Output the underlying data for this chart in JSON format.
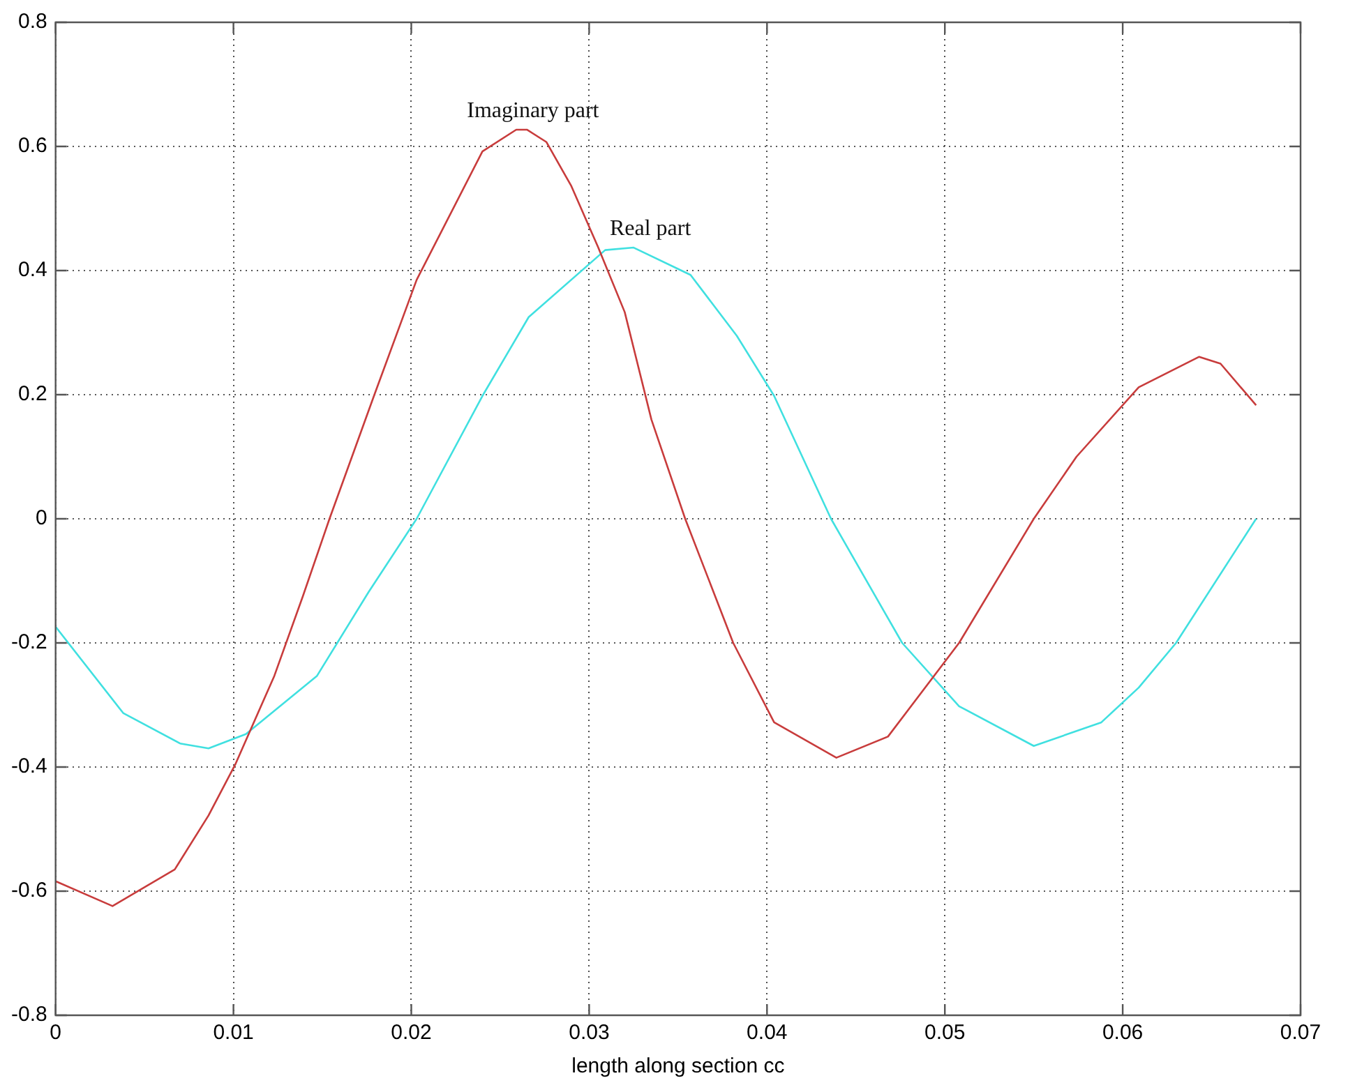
{
  "chart_data": {
    "type": "line",
    "xlabel": "length along section cc",
    "xlim": [
      0,
      0.07
    ],
    "xticks": [
      0,
      0.01,
      0.02,
      0.03,
      0.04,
      0.05,
      0.06,
      0.07
    ],
    "ylim": [
      -0.8,
      0.8
    ],
    "yticks": [
      -0.8,
      -0.6,
      -0.4,
      -0.2,
      0,
      0.2,
      0.4,
      0.6,
      0.8
    ],
    "grid": true,
    "legend": false,
    "marker": "none",
    "line_style": "solid",
    "series": [
      {
        "name": "Imaginary part",
        "color": "#c83c3c",
        "x": [
          0,
          0.0032,
          0.0067,
          0.0086,
          0.0101,
          0.0123,
          0.0139,
          0.0154,
          0.0179,
          0.0203,
          0.024,
          0.0259,
          0.0265,
          0.0276,
          0.029,
          0.0305,
          0.032,
          0.0335,
          0.0354,
          0.0381,
          0.0404,
          0.0439,
          0.0468,
          0.0508,
          0.055,
          0.0574,
          0.0609,
          0.0643,
          0.0655,
          0.0675
        ],
        "values": [
          -0.584,
          -0.624,
          -0.565,
          -0.478,
          -0.396,
          -0.253,
          -0.125,
          0,
          0.198,
          0.385,
          0.592,
          0.627,
          0.627,
          0.607,
          0.536,
          0.438,
          0.333,
          0.16,
          0,
          -0.2,
          -0.328,
          -0.385,
          -0.351,
          -0.2,
          0,
          0.1,
          0.212,
          0.261,
          0.25,
          0.183
        ]
      },
      {
        "name": "Real part",
        "color": "#40e0e0",
        "x": [
          0,
          0.0038,
          0.007,
          0.0086,
          0.0107,
          0.0147,
          0.0176,
          0.0203,
          0.024,
          0.0266,
          0.0309,
          0.0325,
          0.0357,
          0.0383,
          0.0404,
          0.0436,
          0.0476,
          0.0508,
          0.055,
          0.0588,
          0.0609,
          0.063,
          0.0675
        ],
        "values": [
          -0.174,
          -0.313,
          -0.362,
          -0.37,
          -0.347,
          -0.253,
          -0.118,
          0,
          0.198,
          0.325,
          0.433,
          0.437,
          0.393,
          0.295,
          0.198,
          0,
          -0.2,
          -0.302,
          -0.366,
          -0.328,
          -0.272,
          -0.2,
          0
        ]
      }
    ]
  }
}
